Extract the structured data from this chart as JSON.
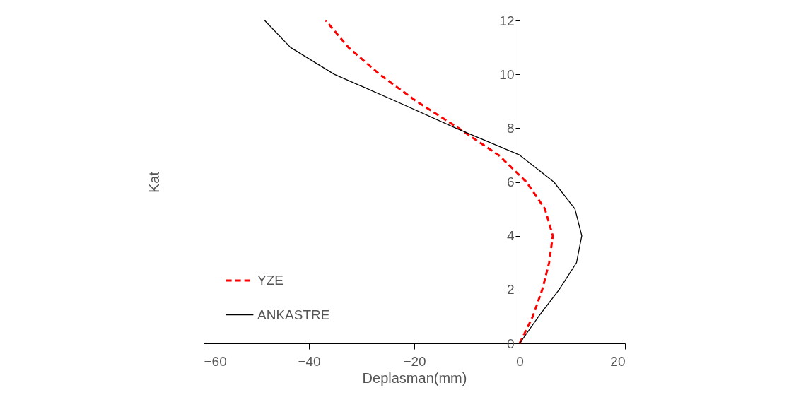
{
  "chart_data": {
    "type": "line",
    "xlabel": "Deplasman(mm)",
    "ylabel": "Kat",
    "xlim": [
      -60,
      20
    ],
    "xticks": [
      -60,
      -40,
      -20,
      0,
      20
    ],
    "ylim": [
      0,
      12
    ],
    "yticks": [
      0,
      2,
      4,
      6,
      8,
      10,
      12
    ],
    "grid": false,
    "legend": "bottom left",
    "marker": "none",
    "series": [
      {
        "name": "YZE",
        "color": "#ff0000",
        "line_style": "dashed",
        "x": [
          0,
          2.5,
          4.3,
          5.6,
          6.3,
          4.8,
          1.3,
          -4,
          -11.6,
          -19.6,
          -26.6,
          -32.5,
          -36.8
        ],
        "values": [
          0,
          1,
          2,
          3,
          4,
          5,
          6,
          7,
          8,
          9,
          10,
          11,
          12
        ]
      },
      {
        "name": "ANKASTRE",
        "color": "#000000",
        "line_style": "solid",
        "x": [
          0,
          3.6,
          7.5,
          10.8,
          11.8,
          10.5,
          6.5,
          0,
          -12.1,
          -23.5,
          -35.2,
          -43.5,
          -48.4
        ],
        "values": [
          0,
          1,
          2,
          3,
          4,
          5,
          6,
          7,
          8,
          9,
          10,
          11,
          12
        ]
      }
    ]
  }
}
